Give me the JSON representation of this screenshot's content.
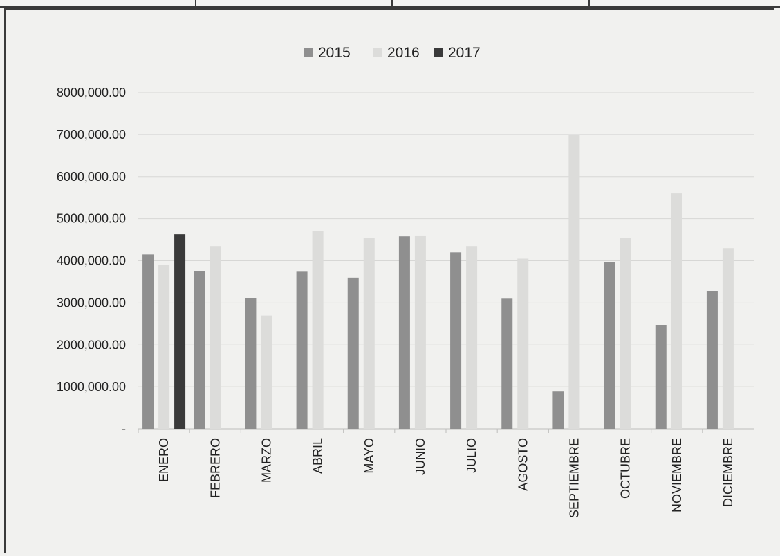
{
  "chart_data": {
    "type": "bar",
    "title": "",
    "xlabel": "",
    "ylabel": "",
    "ylim": [
      0,
      8000000
    ],
    "yticks": [
      {
        "value": 0,
        "label": "-"
      },
      {
        "value": 1000000,
        "label": "1000,000.00"
      },
      {
        "value": 2000000,
        "label": "2000,000.00"
      },
      {
        "value": 3000000,
        "label": "3000,000.00"
      },
      {
        "value": 4000000,
        "label": "4000,000.00"
      },
      {
        "value": 5000000,
        "label": "5000,000.00"
      },
      {
        "value": 6000000,
        "label": "6000,000.00"
      },
      {
        "value": 7000000,
        "label": "7000,000.00"
      },
      {
        "value": 8000000,
        "label": "8000,000.00"
      }
    ],
    "categories": [
      "ENERO",
      "FEBRERO",
      "MARZO",
      "ABRIL",
      "MAYO",
      "JUNIO",
      "JULIO",
      "AGOSTO",
      "SEPTIEMBRE",
      "OCTUBRE",
      "NOVIEMBRE",
      "DICIEMBRE"
    ],
    "grid": true,
    "legend_position": "top",
    "series": [
      {
        "name": "2015",
        "color": "#8f8f8f",
        "values": [
          4150000,
          3760000,
          3120000,
          3740000,
          3600000,
          4580000,
          4200000,
          3100000,
          900000,
          3960000,
          2470000,
          3280000
        ]
      },
      {
        "name": "2016",
        "color": "#dcdcda",
        "values": [
          3900000,
          4350000,
          2700000,
          4700000,
          4550000,
          4600000,
          4350000,
          4050000,
          7000000,
          4550000,
          5600000,
          4300000
        ]
      },
      {
        "name": "2017",
        "color": "#3a3a3a",
        "values": [
          4630000,
          null,
          null,
          null,
          null,
          null,
          null,
          null,
          null,
          null,
          null,
          null
        ]
      }
    ]
  }
}
